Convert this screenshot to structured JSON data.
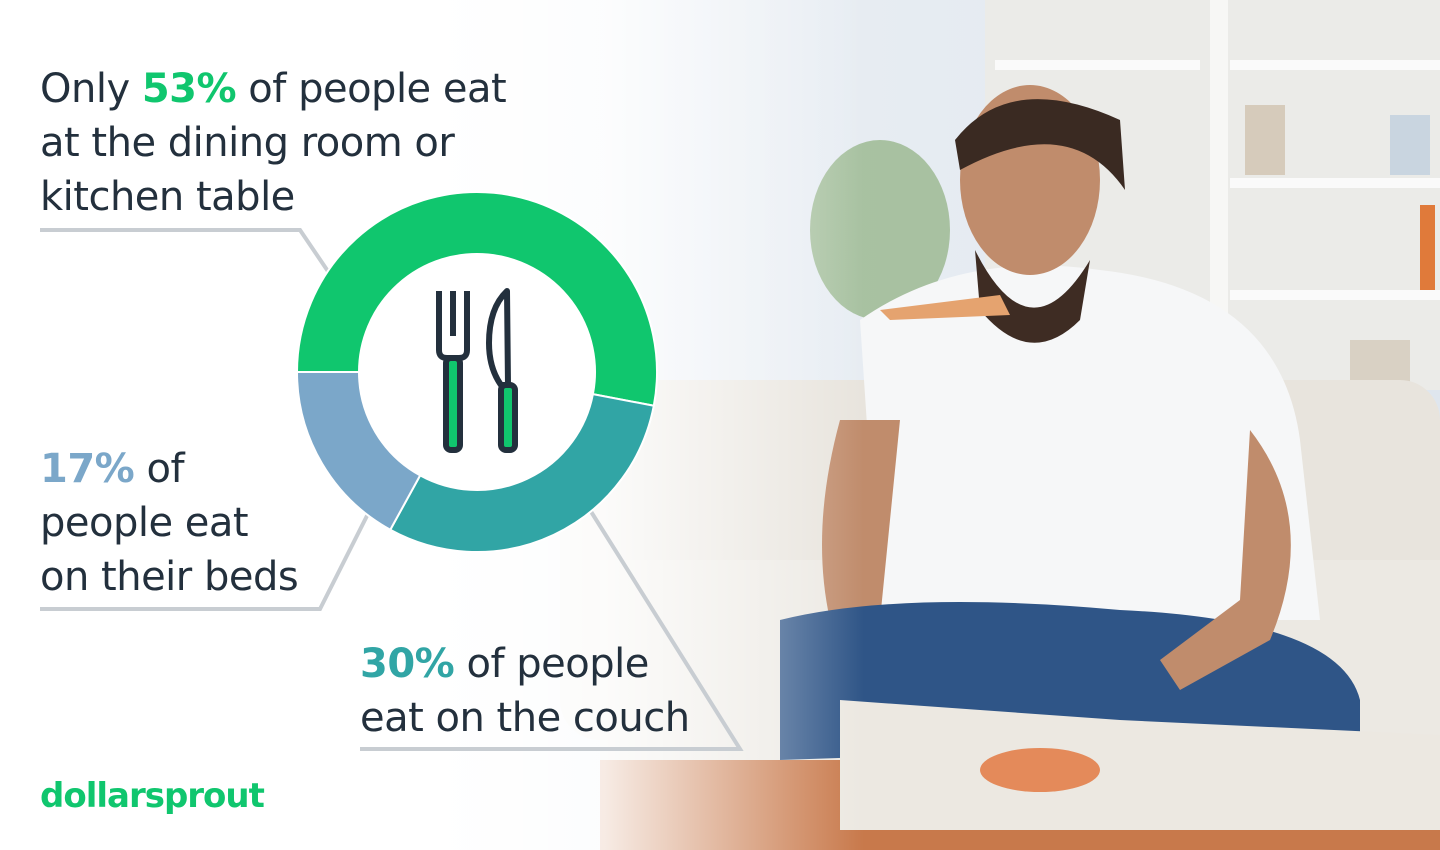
{
  "chart_data": {
    "type": "pie",
    "style": "donut",
    "categories": [
      "Dining room or kitchen table",
      "Couch",
      "Beds"
    ],
    "values": [
      53,
      30,
      17
    ],
    "unit": "%",
    "colors": [
      "#10c66e",
      "#31a5a5",
      "#7ba7c9"
    ],
    "center_icon": "fork-knife-icon"
  },
  "labels": {
    "table": {
      "pre": "Only ",
      "value": "53%",
      "post": " of people eat",
      "line2": "at the dining room or",
      "line3": "kitchen table",
      "color": "#10c66e"
    },
    "beds": {
      "value": "17%",
      "post": " of",
      "line2": "people eat",
      "line3": "on their beds",
      "color": "#7ba7c9"
    },
    "couch": {
      "value": "30%",
      "post": " of people",
      "line2": "eat on the couch",
      "color": "#31a5a5"
    }
  },
  "brand": {
    "logo_text": "dollarsprout",
    "color": "#10c66e"
  }
}
